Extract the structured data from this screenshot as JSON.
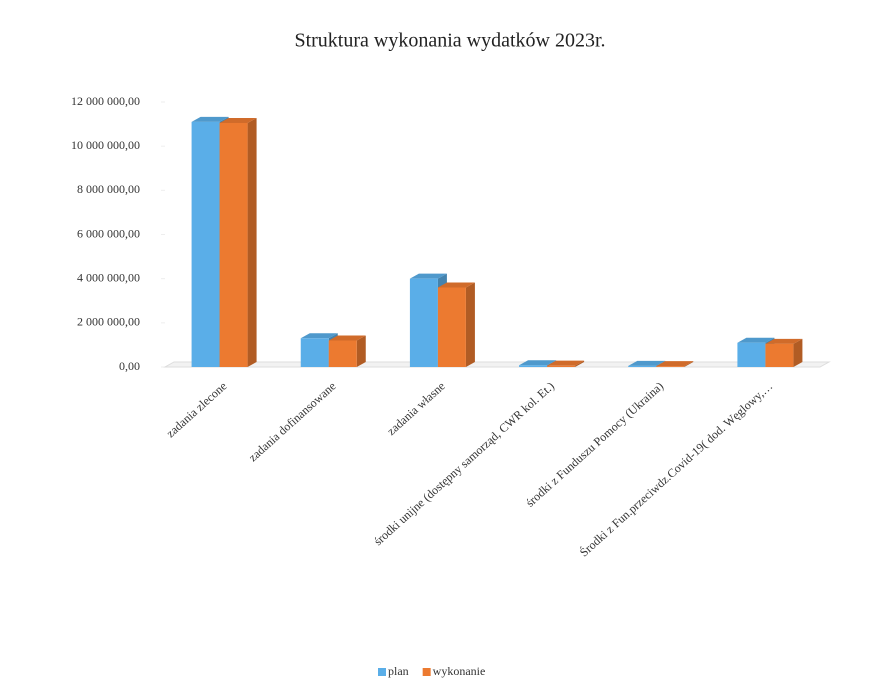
{
  "chart_data": {
    "type": "bar3d",
    "title": "Struktura wykonania wydatków 2023r.",
    "categories": [
      "zadania zlecone",
      "zadania dofinansowane",
      "zadania własne",
      "środki unijne (dostępny samorząd, CWR kol. Et.)",
      "środki z Funduszu Pomocy (Ukraina)",
      "Środki z Fun.przeciwdz.Covid-19( dod. Węglowy,…"
    ],
    "series": [
      {
        "name": "plan",
        "color": "#5aaee8",
        "values": [
          11100000,
          1300000,
          4000000,
          80000,
          50000,
          1100000
        ]
      },
      {
        "name": "wykonanie",
        "color": "#ec7a30",
        "values": [
          11050000,
          1200000,
          3600000,
          60000,
          40000,
          1050000
        ]
      }
    ],
    "ylim": [
      0,
      12000000
    ],
    "yticks": [
      {
        "value": 0,
        "label": "0,00"
      },
      {
        "value": 2000000,
        "label": "2 000 000,00"
      },
      {
        "value": 4000000,
        "label": "4 000 000,00"
      },
      {
        "value": 6000000,
        "label": "6 000 000,00"
      },
      {
        "value": 8000000,
        "label": "8 000 000,00"
      },
      {
        "value": 10000000,
        "label": "10 000 000,00"
      },
      {
        "value": 12000000,
        "label": "12 000 000,00"
      }
    ],
    "legend": "bottom"
  }
}
